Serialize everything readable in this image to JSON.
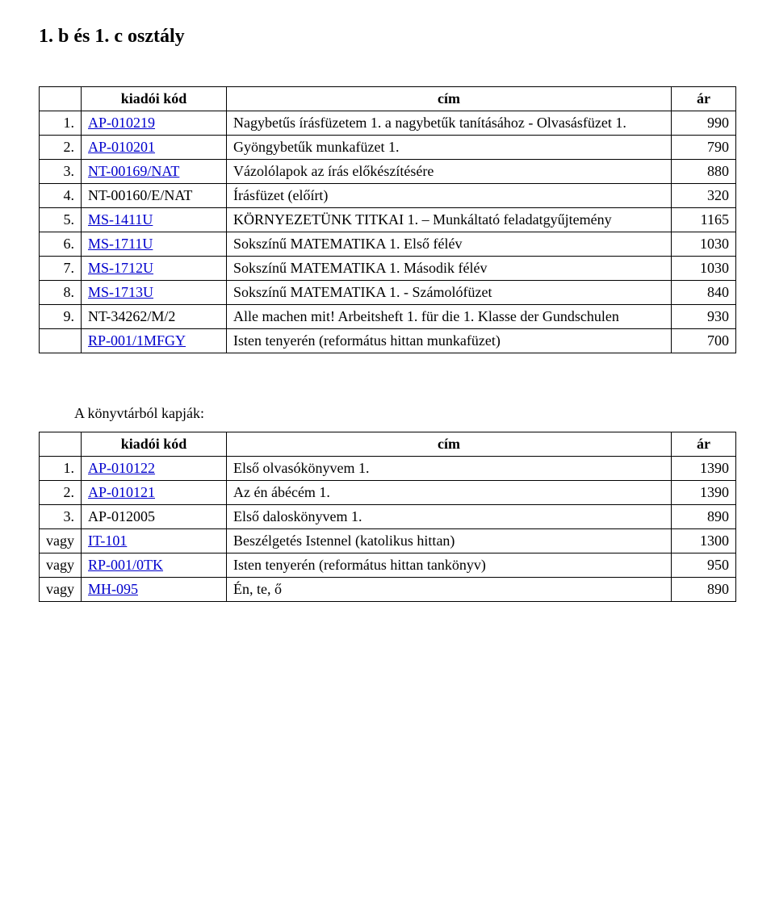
{
  "page_title": "1. b és 1. c  osztály",
  "table1": {
    "headers": {
      "code": "kiadói kód",
      "title": "cím",
      "price": "ár"
    },
    "rows": [
      {
        "num": "1.",
        "code": "AP-010219",
        "code_link": true,
        "title": "Nagybetűs írásfüzetem 1. a nagybetűk tanításához - Olvasásfüzet 1.",
        "price": "990"
      },
      {
        "num": "2.",
        "code": "AP-010201",
        "code_link": true,
        "title": "Gyöngybetűk munkafüzet 1.",
        "price": "790"
      },
      {
        "num": "3.",
        "code": "NT-00169/NAT",
        "code_link": true,
        "title": "Vázolólapok az írás előkészítésére",
        "price": "880"
      },
      {
        "num": "4.",
        "code": "NT-00160/E/NAT",
        "code_link": false,
        "title": "Írásfüzet (előírt)",
        "price": "320"
      },
      {
        "num": "5.",
        "code": "MS-1411U",
        "code_link": true,
        "title": "KÖRNYEZETÜNK TITKAI 1. – Munkáltató feladatgyűjtemény",
        "price": "1165"
      },
      {
        "num": "6.",
        "code": "MS-1711U",
        "code_link": true,
        "title": "Sokszínű MATEMATIKA 1. Első félév",
        "price": "1030"
      },
      {
        "num": "7.",
        "code": "MS-1712U",
        "code_link": true,
        "title": "Sokszínű MATEMATIKA 1. Második félév",
        "price": "1030"
      },
      {
        "num": "8.",
        "code": "MS-1713U",
        "code_link": true,
        "title": "Sokszínű MATEMATIKA 1. - Számolófüzet",
        "price": "840"
      },
      {
        "num": "9.",
        "code": "NT-34262/M/2",
        "code_link": false,
        "title": "Alle machen mit! Arbeitsheft 1. für die 1. Klasse der Gundschulen",
        "price": "930"
      },
      {
        "num": "",
        "code": "RP-001/1MFGY",
        "code_link": true,
        "title": "Isten tenyerén (református hittan munkafüzet)",
        "price": "700"
      }
    ]
  },
  "section2_heading": "A könyvtárból kapják:",
  "table2": {
    "headers": {
      "code": "kiadói kód",
      "title": "cím",
      "price": "ár"
    },
    "rows": [
      {
        "num": "1.",
        "code": "AP-010122",
        "code_link": true,
        "title": "Első olvasókönyvem 1.",
        "price": "1390"
      },
      {
        "num": "2.",
        "code": "AP-010121",
        "code_link": true,
        "title": "Az én ábécém 1.",
        "price": "1390"
      },
      {
        "num": "3.",
        "code": "AP-012005",
        "code_link": false,
        "title": "Első daloskönyvem 1.",
        "price": "890"
      },
      {
        "num": "vagy",
        "code": "IT-101",
        "code_link": true,
        "title": "Beszélgetés Istennel (katolikus hittan)",
        "price": "1300"
      },
      {
        "num": "vagy",
        "code": "RP-001/0TK",
        "code_link": true,
        "title": "Isten tenyerén (református hittan tankönyv)",
        "price": "950"
      },
      {
        "num": "vagy",
        "code": "MH-095",
        "code_link": true,
        "title": "Én, te, ő",
        "price": "890"
      }
    ]
  }
}
